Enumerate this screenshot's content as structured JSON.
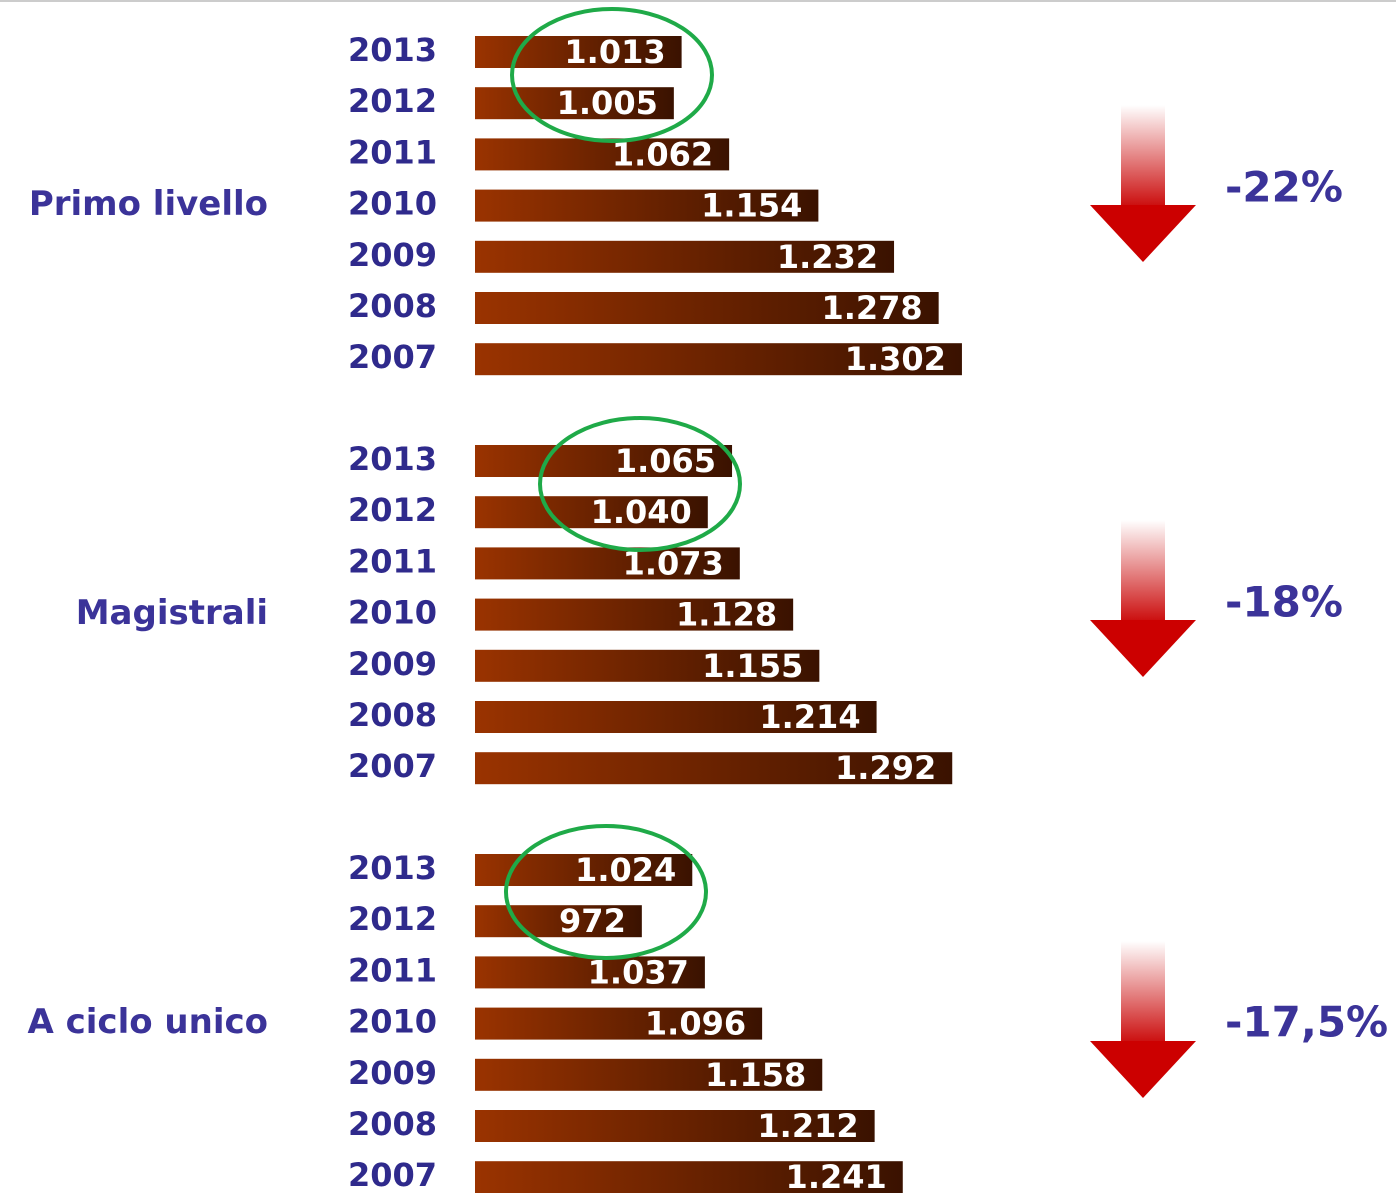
{
  "chart_data": [
    {
      "type": "bar",
      "title": "Primo livello",
      "annotation": "-22%",
      "color": "#9a3300",
      "categories": [
        "2013",
        "2012",
        "2011",
        "2010",
        "2009",
        "2008",
        "2007"
      ],
      "values": [
        1013,
        1005,
        1062,
        1154,
        1232,
        1278,
        1302
      ],
      "value_labels": [
        "1.013",
        "1.005",
        "1.062",
        "1.154",
        "1.232",
        "1.278",
        "1.302"
      ],
      "xlim": [
        800,
        1300
      ]
    },
    {
      "type": "bar",
      "title": "Magistrali",
      "annotation": "-18%",
      "color": "#9a3300",
      "categories": [
        "2013",
        "2012",
        "2011",
        "2010",
        "2009",
        "2008",
        "2007"
      ],
      "values": [
        1065,
        1040,
        1073,
        1128,
        1155,
        1214,
        1292
      ],
      "value_labels": [
        "1.065",
        "1.040",
        "1.073",
        "1.128",
        "1.155",
        "1.214",
        "1.292"
      ],
      "xlim": [
        800,
        1300
      ]
    },
    {
      "type": "bar",
      "title": "A ciclo unico",
      "annotation": "-17,5%",
      "color": "#9a3300",
      "categories": [
        "2013",
        "2012",
        "2011",
        "2010",
        "2009",
        "2008",
        "2007"
      ],
      "values": [
        1024,
        972,
        1037,
        1096,
        1158,
        1212,
        1241
      ],
      "value_labels": [
        "1.024",
        "972",
        "1.037",
        "1.096",
        "1.158",
        "1.212",
        "1.241"
      ],
      "xlim": [
        800,
        1300
      ]
    }
  ]
}
